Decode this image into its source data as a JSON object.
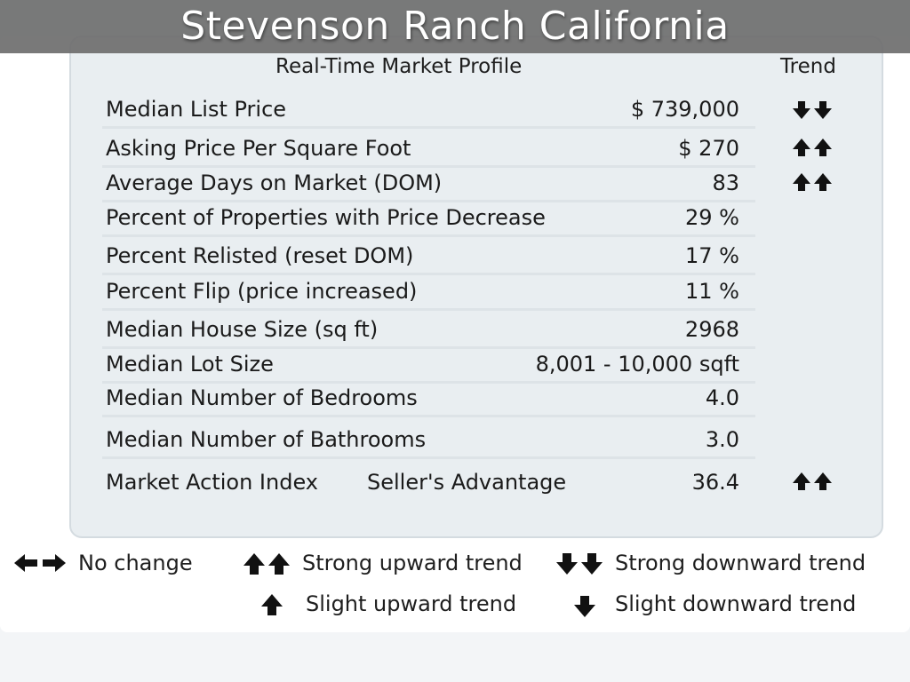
{
  "page": {
    "title": "Stevenson Ranch California"
  },
  "table": {
    "header": "Real-Time Market Profile",
    "trend_header": "Trend",
    "rows": [
      {
        "label": "Median List Price",
        "value": "$ 739,000",
        "trend": "strong-down"
      },
      {
        "label": "Asking Price Per Square Foot",
        "value": "$ 270",
        "trend": "strong-up"
      },
      {
        "label": "Average Days on Market (DOM)",
        "value": "83",
        "trend": "strong-up"
      },
      {
        "label": "Percent of Properties with Price Decrease",
        "value": "29 %",
        "trend": "none"
      },
      {
        "label": "Percent Relisted (reset DOM)",
        "value": "17 %",
        "trend": "none"
      },
      {
        "label": "Percent Flip (price increased)",
        "value": "11 %",
        "trend": "none"
      },
      {
        "label": "Median House Size (sq ft)",
        "value": "2968",
        "trend": "none"
      },
      {
        "label": "Median Lot Size",
        "value": "8,001 - 10,000 sqft",
        "trend": "none"
      },
      {
        "label": "Median Number of Bedrooms",
        "value": "4.0",
        "trend": "none"
      },
      {
        "label": "Median Number of Bathrooms",
        "value": "3.0",
        "trend": "none"
      },
      {
        "label": "Market Action Index",
        "middle": "Seller's Advantage",
        "value": "36.4",
        "trend": "strong-up"
      }
    ]
  },
  "legend": {
    "no_change": "No change",
    "strong_up": "Strong upward trend",
    "strong_down": "Strong downward trend",
    "slight_up": "Slight upward trend",
    "slight_down": "Slight downward trend"
  },
  "icons": {
    "strong-up": "double-up-arrow-icon",
    "strong-down": "double-down-arrow-icon",
    "slight-up": "up-arrow-icon",
    "slight-down": "down-arrow-icon",
    "no-change": "left-right-arrow-icon"
  },
  "colors": {
    "title_bar": "#6e6e6e",
    "card": "#e9eef1",
    "text": "#1a1a1a"
  }
}
